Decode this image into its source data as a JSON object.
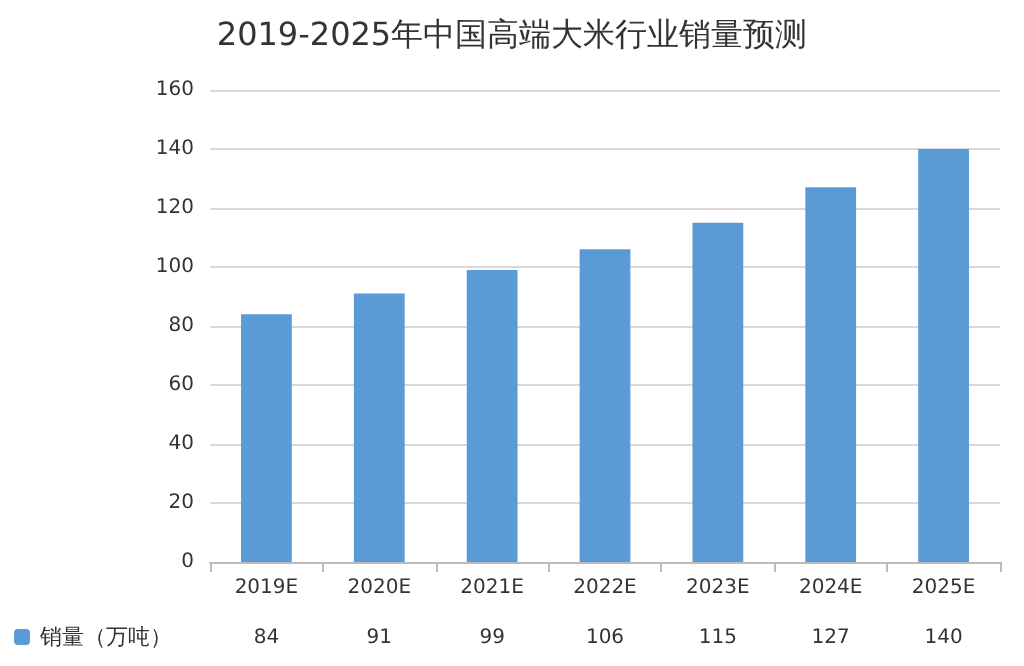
{
  "chart_data": {
    "type": "bar",
    "title": "2019-2025年中国高端大米行业销量预测",
    "categories": [
      "2019E",
      "2020E",
      "2021E",
      "2022E",
      "2023E",
      "2024E",
      "2025E"
    ],
    "series": [
      {
        "name": "销量（万吨）",
        "color": "#5b9bd5",
        "values": [
          84,
          91,
          99,
          106,
          115,
          127,
          140
        ]
      }
    ],
    "ylim": [
      0,
      160
    ],
    "yticks": [
      0,
      20,
      40,
      60,
      80,
      100,
      120,
      140,
      160
    ],
    "grid": "y",
    "legend": "bottom left",
    "data_labels": true
  }
}
